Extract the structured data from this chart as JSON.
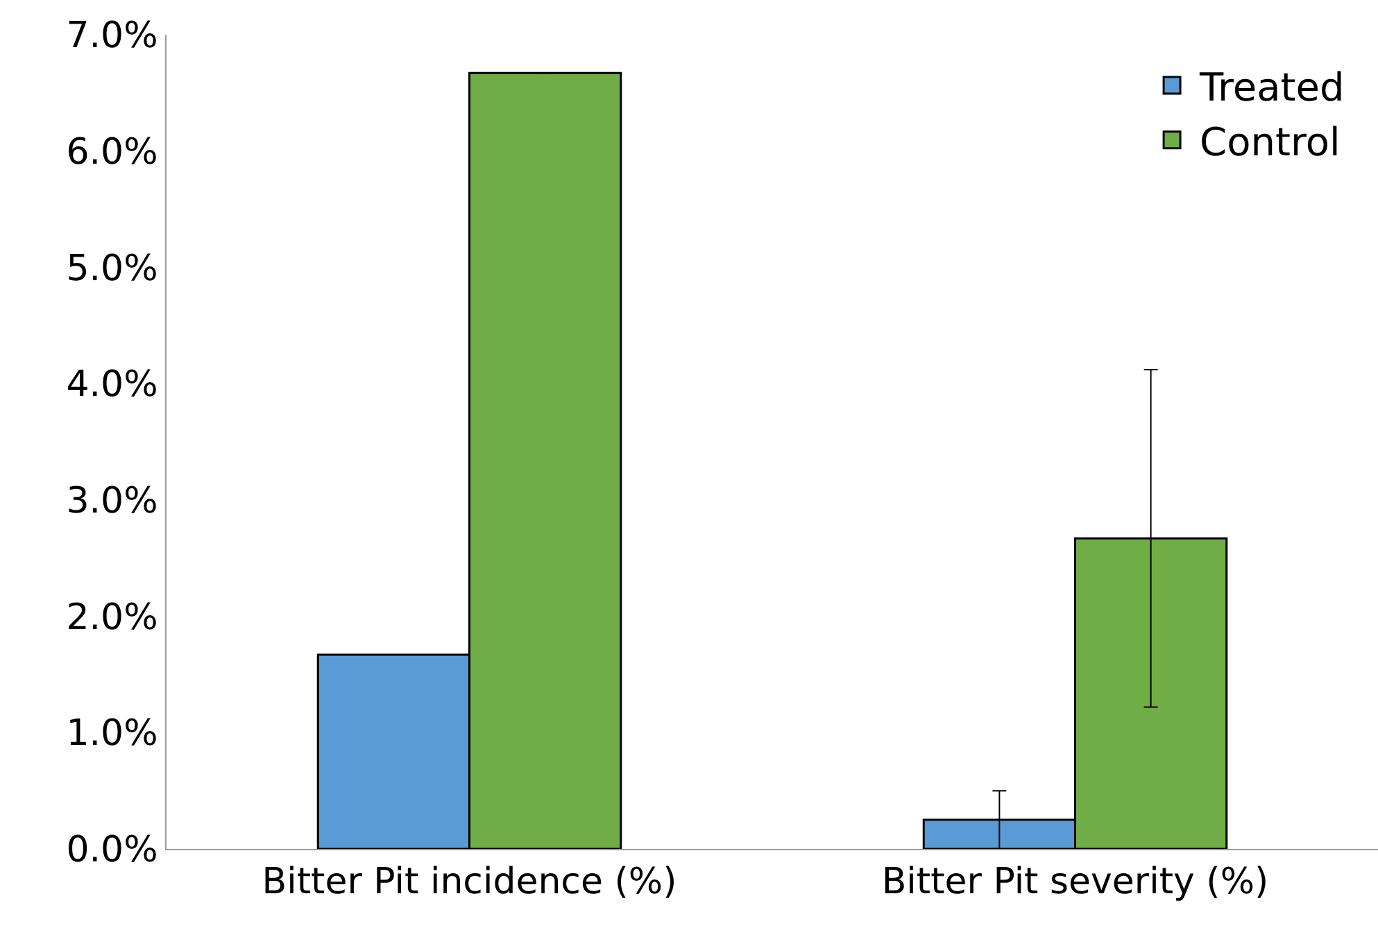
{
  "chart_data": {
    "type": "bar",
    "categories": [
      "Bitter Pit incidence (%)",
      "Bitter Pit severity (%)"
    ],
    "series": [
      {
        "name": "Treated",
        "color": "#5b9bd5",
        "values": [
          1.67,
          0.25
        ],
        "errors": [
          null,
          0.25
        ]
      },
      {
        "name": "Control",
        "color": "#70ad47",
        "values": [
          6.67,
          2.67
        ],
        "errors": [
          null,
          1.45
        ]
      }
    ],
    "ylim": [
      0,
      7
    ],
    "yticks": [
      {
        "value": 0,
        "label": "0.0%"
      },
      {
        "value": 1,
        "label": "1.0%"
      },
      {
        "value": 2,
        "label": "2.0%"
      },
      {
        "value": 3,
        "label": "3.0%"
      },
      {
        "value": 4,
        "label": "4.0%"
      },
      {
        "value": 5,
        "label": "5.0%"
      },
      {
        "value": 6,
        "label": "6.0%"
      },
      {
        "value": 7,
        "label": "7.0%"
      }
    ],
    "grid": false,
    "legend": "top right"
  }
}
